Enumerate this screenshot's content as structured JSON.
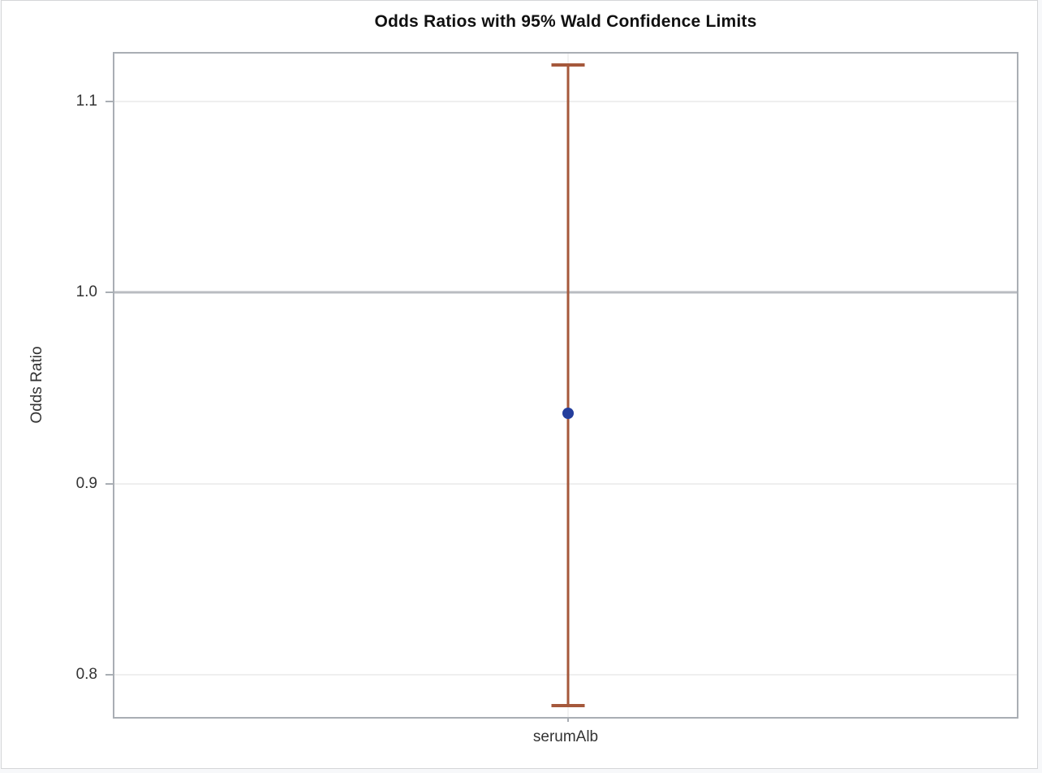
{
  "title": "Odds Ratios with 95% Wald Confidence Limits",
  "chart_data": {
    "type": "scatter",
    "subtype": "odds-ratio-interval-plot",
    "title": "Odds Ratios with 95% Wald Confidence Limits",
    "xlabel": "",
    "ylabel": "Odds Ratio",
    "categories": [
      "serumAlb"
    ],
    "points": [
      {
        "category": "serumAlb",
        "odds_ratio": 0.937,
        "lower_cl": 0.784,
        "upper_cl": 1.119
      }
    ],
    "yticks": [
      1.1,
      1.0,
      0.9,
      0.8
    ],
    "ytick_labels": [
      "1.1",
      "1.0",
      "0.9",
      "0.8"
    ],
    "ylim": [
      0.778,
      1.125
    ],
    "reference_line": 1.0,
    "grid": true,
    "legend": "none",
    "colors": {
      "marker": "#243E9C",
      "error_bar": "#A5583B",
      "gridline": "#EFEFEF",
      "reference_line": "#B9BCC1",
      "frame": "#A9AEB4"
    }
  }
}
